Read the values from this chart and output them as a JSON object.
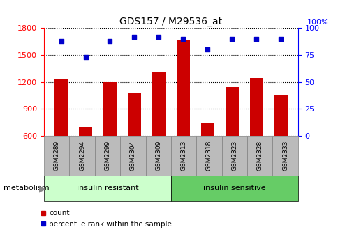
{
  "title": "GDS157 / M29536_at",
  "samples": [
    "GSM2289",
    "GSM2294",
    "GSM2299",
    "GSM2304",
    "GSM2309",
    "GSM2313",
    "GSM2318",
    "GSM2323",
    "GSM2328",
    "GSM2333"
  ],
  "counts": [
    1230,
    690,
    1200,
    1080,
    1310,
    1660,
    740,
    1140,
    1240,
    1060
  ],
  "percentile_ranks": [
    88,
    73,
    88,
    92,
    92,
    90,
    80,
    90,
    90,
    90
  ],
  "bar_color": "#cc0000",
  "dot_color": "#0000cc",
  "ylim_left": [
    600,
    1800
  ],
  "ylim_right": [
    0,
    100
  ],
  "yticks_left": [
    600,
    900,
    1200,
    1500,
    1800
  ],
  "yticks_right": [
    0,
    25,
    50,
    75,
    100
  ],
  "right_axis_top_label": "100%",
  "group1_label": "insulin resistant",
  "group2_label": "insulin sensitive",
  "group1_count": 5,
  "group2_count": 5,
  "metabolism_label": "metabolism",
  "legend_count": "count",
  "legend_percentile": "percentile rank within the sample",
  "group1_color": "#ccffcc",
  "group2_color": "#66cc66",
  "tick_bg_color": "#bbbbbb",
  "bar_width": 0.55
}
